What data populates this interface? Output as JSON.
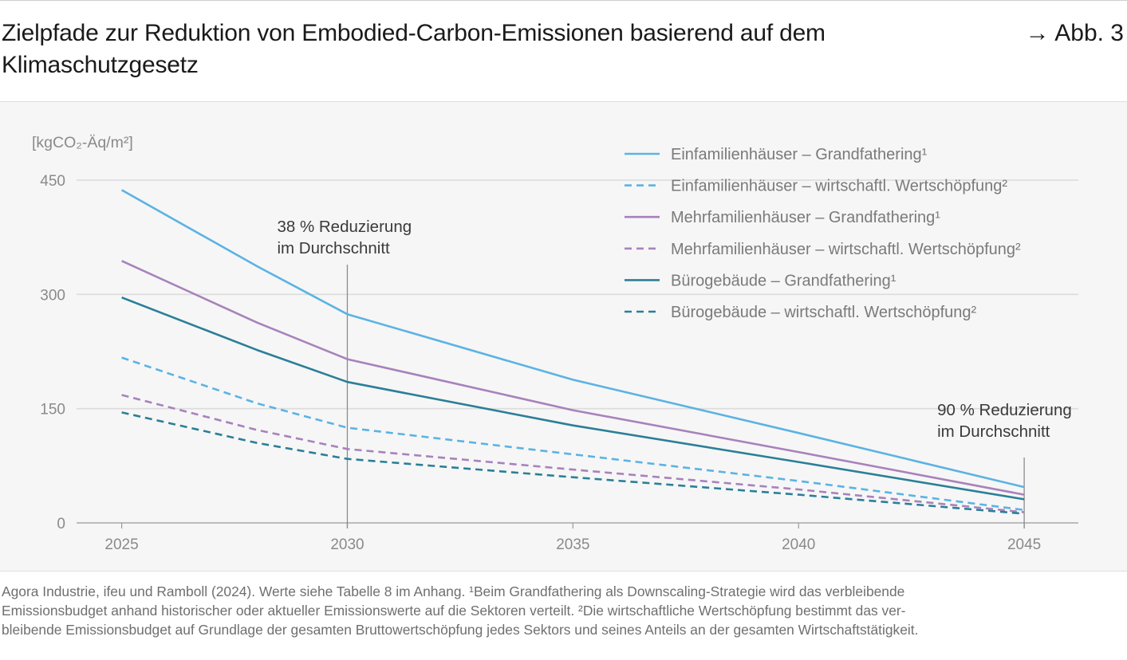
{
  "header": {
    "title": "Zielpfade zur Reduktion von Embodied-Carbon-Emissionen basierend auf dem Klimaschutzgesetz",
    "figure_ref": "→ Abb. 3"
  },
  "footnote": {
    "lines": [
      "Agora Industrie, ifeu und Ramboll (2024). Werte siehe Tabelle 8 im Anhang. ¹Beim Grandfathering als Downscaling-Strategie wird das verbleibende",
      "Emissionsbudget anhand historischer oder aktueller Emissionswerte auf die Sektoren verteilt. ²Die wirtschaftliche Wertschöpfung bestimmt das ver-",
      "bleibende Emissionsbudget auf Grundlage der gesamten Bruttowertschöpfung jedes Sektors und seines Anteils an der gesamten Wirtschaftstätigkeit."
    ]
  },
  "chart_data": {
    "type": "line",
    "ylabel": "[kgCO₂-Äq/m²]",
    "ylim": [
      0,
      450
    ],
    "yticks": [
      0,
      150,
      300,
      450
    ],
    "xlim": [
      2024,
      2046.2
    ],
    "xticks": [
      2025,
      2030,
      2035,
      2040,
      2045
    ],
    "grid": true,
    "legend_position": "top-right",
    "x": [
      2025,
      2028,
      2030,
      2035,
      2040,
      2045
    ],
    "series": [
      {
        "name": "Einfamilienhäuser – Grandfathering¹",
        "color": "#5bb3e3",
        "dash": false,
        "values": [
          437,
          337,
          274,
          188,
          118,
          47
        ]
      },
      {
        "name": "Einfamilienhäuser – wirtschaftl. Wertschöpfung²",
        "color": "#5bb3e3",
        "dash": true,
        "values": [
          217,
          157,
          125,
          90,
          55,
          17
        ]
      },
      {
        "name": "Mehrfamilienhäuser – Grandfathering¹",
        "color": "#a882bb",
        "dash": false,
        "values": [
          344,
          263,
          215,
          148,
          93,
          37
        ]
      },
      {
        "name": "Mehrfamilienhäuser – wirtschaftl. Wertschöpfung²",
        "color": "#a882bb",
        "dash": true,
        "values": [
          168,
          122,
          97,
          70,
          44,
          14
        ]
      },
      {
        "name": "Bürogebäude – Grandfathering¹",
        "color": "#2b7f98",
        "dash": false,
        "values": [
          296,
          227,
          185,
          128,
          80,
          31
        ]
      },
      {
        "name": "Bürogebäude – wirtschaftl. Wertschöpfung²",
        "color": "#2b7f98",
        "dash": true,
        "values": [
          145,
          105,
          84,
          60,
          37,
          12
        ]
      }
    ],
    "annotations": [
      {
        "x": 2030,
        "lines": [
          "38 % Reduzierung",
          "im Durchschnitt"
        ]
      },
      {
        "x": 2045,
        "lines": [
          "90 % Reduzierung",
          "im Durchschnitt"
        ]
      }
    ]
  }
}
